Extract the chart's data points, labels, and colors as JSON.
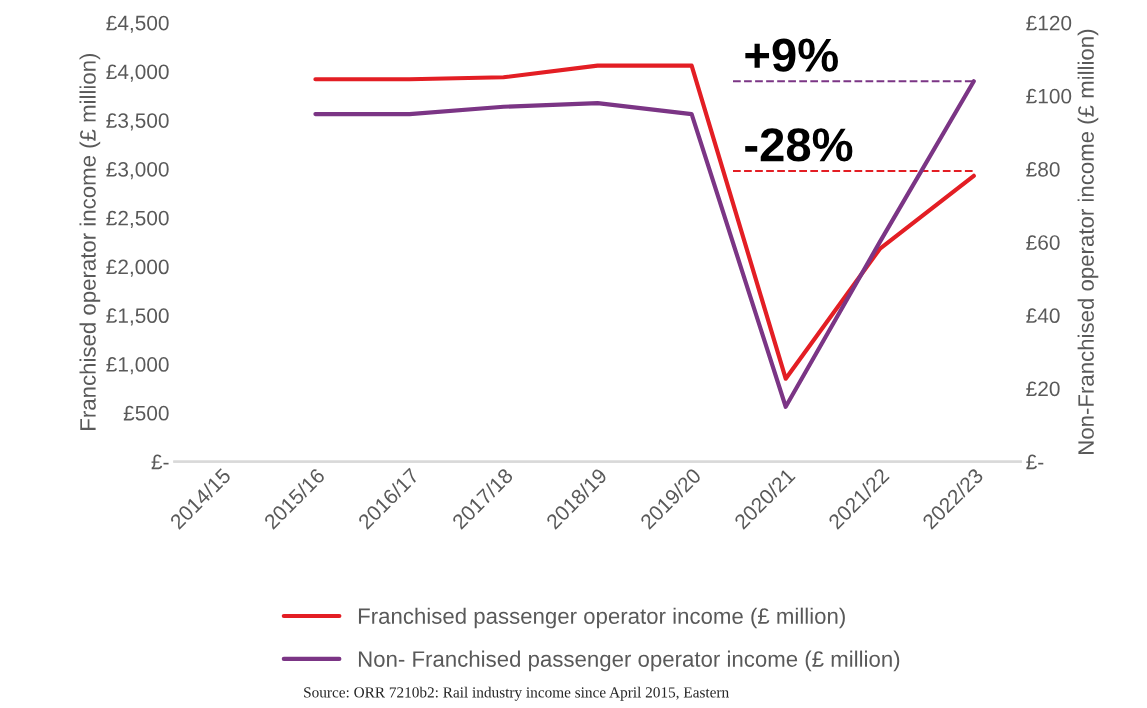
{
  "chart_data": {
    "type": "line",
    "categories": [
      "2014/15",
      "2015/16",
      "2016/17",
      "2017/18",
      "2018/19",
      "2019/20",
      "2020/21",
      "2021/22",
      "2022/23"
    ],
    "series": [
      {
        "name": "Franchised passenger operator income (£ million)",
        "color": "#e31e24",
        "values": [
          null,
          3920,
          3920,
          3940,
          4060,
          4060,
          850,
          2180,
          2930
        ]
      },
      {
        "name": "Non- Franchised passenger operator income (£ million)",
        "color": "#7b3585",
        "axis": "y2",
        "values": [
          null,
          95,
          95,
          97,
          98,
          95,
          15,
          60,
          104
        ]
      }
    ],
    "ylabel": "Franchised operator income (£ million)",
    "y2label": "Non-Franchised operator income (£ million)",
    "ylim": [
      0,
      4500
    ],
    "yticks": [
      {
        "value": 0,
        "label": "£-"
      },
      {
        "value": 500,
        "label": "£500"
      },
      {
        "value": 1000,
        "label": "£1,000"
      },
      {
        "value": 1500,
        "label": "£1,500"
      },
      {
        "value": 2000,
        "label": "£2,000"
      },
      {
        "value": 2500,
        "label": "£2,500"
      },
      {
        "value": 3000,
        "label": "£3,000"
      },
      {
        "value": 3500,
        "label": "£3,500"
      },
      {
        "value": 4000,
        "label": "£4,000"
      },
      {
        "value": 4500,
        "label": "£4,500"
      }
    ],
    "y2lim": [
      0,
      120
    ],
    "y2ticks": [
      {
        "value": 0,
        "label": "£-"
      },
      {
        "value": 20,
        "label": "£20"
      },
      {
        "value": 40,
        "label": "£40"
      },
      {
        "value": 60,
        "label": "£60"
      },
      {
        "value": 80,
        "label": "£80"
      },
      {
        "value": 100,
        "label": "£100"
      },
      {
        "value": 120,
        "label": "£120"
      }
    ],
    "ref_lines": [
      {
        "axis": "y2",
        "value": 104,
        "color": "#7b3585",
        "line_style": "dashed"
      },
      {
        "axis": "y",
        "value": 2980,
        "color": "#e31e24",
        "line_style": "dashed"
      }
    ],
    "annotations": [
      "+9%",
      "-28%",
      "Source: ORR 7210b2: Rail industry income since April 2015, Eastern"
    ],
    "legend": "bottom",
    "grid": false,
    "marker": "none",
    "line_style": "solid"
  }
}
